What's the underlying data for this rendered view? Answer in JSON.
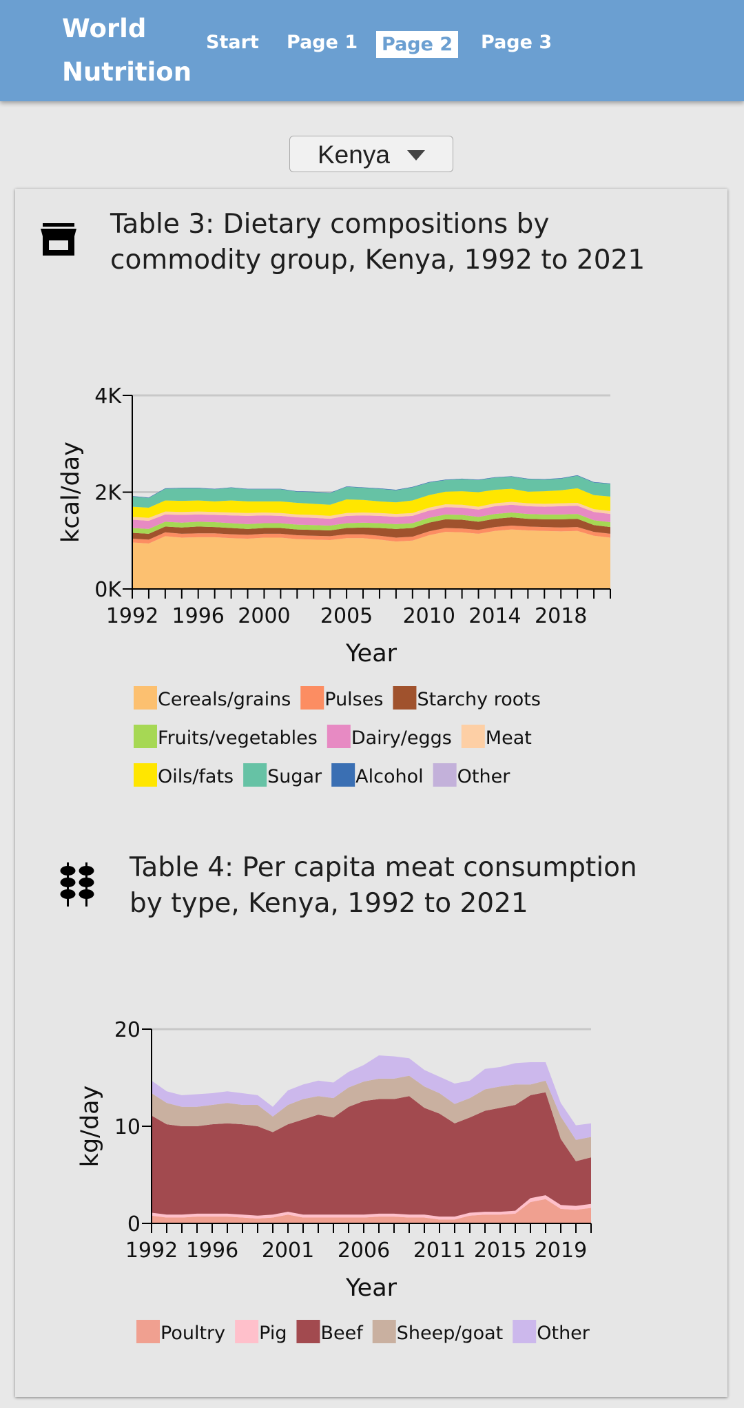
{
  "header": {
    "brand_line1": "World",
    "brand_line2": "Nutrition",
    "nav": [
      "Start",
      "Page 1",
      "Page 2",
      "Page 3"
    ],
    "active_nav": "Page 2"
  },
  "country_select": {
    "value": "Kenya"
  },
  "icons": {
    "table3": "store-icon",
    "table4": "meat-skewer-icon"
  },
  "table3": {
    "title_line1": "Table 3: Dietary compositions by",
    "title_line2": "commodity group, Kenya, 1992 to 2021"
  },
  "table4": {
    "title_line1": "Table 4: Per capita meat consumption",
    "title_line2": "by type, Kenya, 1992 to 2021"
  },
  "chart_data": [
    {
      "type": "area",
      "stacked": true,
      "xlabel": "Year",
      "ylabel": "kcal/day",
      "ylim": [
        0,
        4000
      ],
      "yticks": [
        0,
        2000,
        4000
      ],
      "ytick_labels": [
        "0K",
        "2K",
        "4K"
      ],
      "xticks": [
        1992,
        1996,
        2000,
        2005,
        2010,
        2014,
        2018
      ],
      "grid": "horizontal",
      "legend_position": "bottom",
      "x": [
        1992,
        1993,
        1994,
        1995,
        1996,
        1997,
        1998,
        1999,
        2000,
        2001,
        2002,
        2003,
        2004,
        2005,
        2006,
        2007,
        2008,
        2009,
        2010,
        2011,
        2012,
        2013,
        2014,
        2015,
        2016,
        2017,
        2018,
        2019,
        2020,
        2021
      ],
      "series": [
        {
          "name": "Cereals/grains",
          "color": "#fcc070",
          "values": [
            960,
            940,
            1090,
            1060,
            1070,
            1070,
            1050,
            1040,
            1060,
            1060,
            1030,
            1020,
            1010,
            1050,
            1050,
            1020,
            980,
            1000,
            1110,
            1180,
            1170,
            1140,
            1200,
            1230,
            1210,
            1200,
            1190,
            1200,
            1100,
            1060
          ]
        },
        {
          "name": "Pulses",
          "color": "#fc8d62",
          "values": [
            80,
            80,
            80,
            80,
            80,
            80,
            80,
            80,
            80,
            80,
            80,
            80,
            80,
            80,
            80,
            80,
            80,
            80,
            80,
            80,
            80,
            80,
            80,
            80,
            80,
            80,
            80,
            80,
            80,
            80
          ]
        },
        {
          "name": "Starchy roots",
          "color": "#a0522d",
          "values": [
            120,
            120,
            120,
            130,
            140,
            130,
            130,
            120,
            120,
            120,
            120,
            120,
            120,
            130,
            140,
            160,
            180,
            180,
            180,
            180,
            180,
            170,
            170,
            170,
            160,
            160,
            170,
            170,
            140,
            140
          ]
        },
        {
          "name": "Fruits/vegetables",
          "color": "#a6d854",
          "values": [
            100,
            100,
            100,
            100,
            100,
            100,
            100,
            100,
            100,
            100,
            100,
            100,
            100,
            100,
            100,
            100,
            100,
            100,
            100,
            100,
            100,
            100,
            100,
            100,
            100,
            100,
            100,
            100,
            100,
            100
          ]
        },
        {
          "name": "Dairy/eggs",
          "color": "#e78ac3",
          "values": [
            170,
            170,
            150,
            160,
            150,
            150,
            160,
            170,
            160,
            150,
            150,
            150,
            140,
            150,
            150,
            150,
            150,
            150,
            150,
            150,
            150,
            150,
            160,
            160,
            160,
            160,
            170,
            170,
            170,
            170
          ]
        },
        {
          "name": "Meat",
          "color": "#fdcfa5",
          "values": [
            60,
            60,
            60,
            60,
            60,
            60,
            60,
            60,
            60,
            60,
            60,
            60,
            60,
            60,
            60,
            60,
            60,
            60,
            60,
            60,
            60,
            60,
            60,
            60,
            60,
            60,
            60,
            60,
            60,
            60
          ]
        },
        {
          "name": "Oils/fats",
          "color": "#ffe600",
          "values": [
            210,
            210,
            230,
            230,
            230,
            220,
            250,
            240,
            230,
            240,
            240,
            230,
            230,
            280,
            260,
            240,
            240,
            260,
            260,
            260,
            280,
            300,
            280,
            270,
            240,
            260,
            270,
            300,
            290,
            300
          ]
        },
        {
          "name": "Sugar",
          "color": "#66c2a5",
          "values": [
            210,
            200,
            240,
            260,
            250,
            250,
            260,
            250,
            250,
            250,
            230,
            240,
            240,
            260,
            250,
            260,
            250,
            270,
            260,
            240,
            250,
            250,
            250,
            250,
            260,
            240,
            240,
            260,
            260,
            260
          ]
        },
        {
          "name": "Alcohol",
          "color": "#3a6fb3",
          "values": [
            10,
            10,
            10,
            10,
            10,
            10,
            10,
            10,
            10,
            10,
            10,
            10,
            10,
            10,
            10,
            10,
            10,
            10,
            10,
            10,
            10,
            10,
            10,
            10,
            10,
            10,
            10,
            10,
            10,
            10
          ]
        },
        {
          "name": "Other",
          "color": "#c3b1da",
          "values": [
            0,
            0,
            0,
            0,
            0,
            0,
            0,
            0,
            0,
            0,
            0,
            0,
            0,
            0,
            0,
            0,
            0,
            0,
            0,
            0,
            0,
            0,
            0,
            0,
            0,
            0,
            0,
            0,
            0,
            0
          ]
        }
      ]
    },
    {
      "type": "area",
      "stacked": true,
      "xlabel": "Year",
      "ylabel": "kg/day",
      "ylim": [
        0,
        20
      ],
      "yticks": [
        0,
        10,
        20
      ],
      "xticks": [
        1992,
        1996,
        2001,
        2006,
        2011,
        2015,
        2019
      ],
      "grid": "horizontal",
      "legend_position": "bottom",
      "x": [
        1992,
        1993,
        1994,
        1995,
        1996,
        1997,
        1998,
        1999,
        2000,
        2001,
        2002,
        2003,
        2004,
        2005,
        2006,
        2007,
        2008,
        2009,
        2010,
        2011,
        2012,
        2013,
        2014,
        2015,
        2016,
        2017,
        2018,
        2019,
        2020,
        2021
      ],
      "series": [
        {
          "name": "Poultry",
          "color": "#f0a090",
          "values": [
            0.8,
            0.6,
            0.6,
            0.7,
            0.7,
            0.7,
            0.6,
            0.5,
            0.6,
            0.9,
            0.6,
            0.6,
            0.6,
            0.6,
            0.6,
            0.7,
            0.7,
            0.6,
            0.6,
            0.4,
            0.4,
            0.8,
            0.9,
            0.9,
            1.0,
            2.2,
            2.5,
            1.5,
            1.4,
            1.6
          ]
        },
        {
          "name": "Pig",
          "color": "#ffc0cb",
          "values": [
            0.3,
            0.3,
            0.3,
            0.3,
            0.3,
            0.3,
            0.3,
            0.3,
            0.3,
            0.3,
            0.3,
            0.3,
            0.3,
            0.3,
            0.3,
            0.3,
            0.3,
            0.3,
            0.3,
            0.3,
            0.3,
            0.3,
            0.3,
            0.3,
            0.3,
            0.4,
            0.4,
            0.4,
            0.4,
            0.4
          ]
        },
        {
          "name": "Beef",
          "color": "#a24a4f",
          "values": [
            10.0,
            9.3,
            9.1,
            9.0,
            9.2,
            9.3,
            9.3,
            9.2,
            8.5,
            9.0,
            9.8,
            10.3,
            10.0,
            11.1,
            11.7,
            11.8,
            11.8,
            12.2,
            11.0,
            10.6,
            9.6,
            9.8,
            10.4,
            10.7,
            10.9,
            10.6,
            10.6,
            6.8,
            4.6,
            4.8
          ]
        },
        {
          "name": "Sheep/goat",
          "color": "#c9b0a0",
          "values": [
            2.3,
            2.2,
            2.0,
            2.0,
            2.0,
            2.1,
            2.0,
            2.2,
            1.6,
            2.0,
            2.1,
            1.9,
            2.0,
            2.0,
            2.0,
            2.1,
            2.1,
            2.1,
            2.2,
            2.1,
            2.0,
            2.0,
            2.2,
            2.2,
            2.1,
            1.1,
            1.2,
            2.3,
            2.2,
            2.1
          ]
        },
        {
          "name": "Other",
          "color": "#ccb8ec",
          "values": [
            1.3,
            1.2,
            1.2,
            1.3,
            1.2,
            1.2,
            1.2,
            1.0,
            1.0,
            1.5,
            1.5,
            1.6,
            1.6,
            1.6,
            1.7,
            2.4,
            2.3,
            1.8,
            1.7,
            1.7,
            2.1,
            1.8,
            2.1,
            2.0,
            2.2,
            2.3,
            1.9,
            1.4,
            1.5,
            1.4
          ]
        }
      ]
    }
  ]
}
